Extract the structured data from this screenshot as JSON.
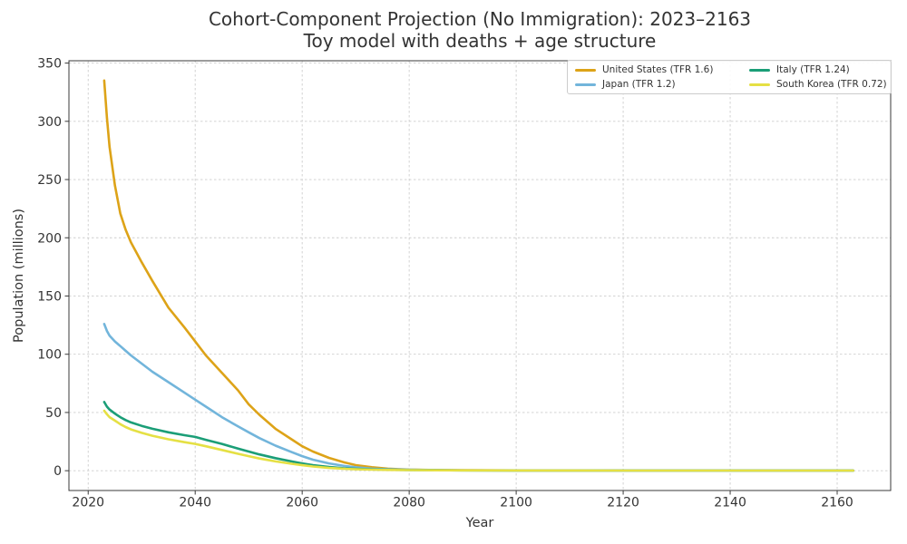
{
  "chart_data": {
    "type": "line",
    "title": "Cohort-Component Projection (No Immigration): 2023–2163",
    "subtitle": "Toy model with deaths + age structure",
    "xlabel": "Year",
    "ylabel": "Population (millions)",
    "axes": {
      "xlim": [
        2016.4,
        2170
      ],
      "ylim": [
        -17,
        352
      ],
      "xticks": [
        2020,
        2040,
        2060,
        2080,
        2100,
        2120,
        2140,
        2160
      ],
      "yticks": [
        0,
        50,
        100,
        150,
        200,
        250,
        300,
        350
      ],
      "grid": true,
      "grid_color": "#cdcdcd",
      "spine_color": "#3a3a3a",
      "tick_label_color": "#2b2b2b"
    },
    "legend": {
      "position": "upper right",
      "columns": 2
    },
    "series": [
      {
        "name": "United States (TFR 1.6)",
        "color": "#DDA318",
        "points": [
          [
            2023,
            335
          ],
          [
            2023.5,
            303
          ],
          [
            2024,
            278
          ],
          [
            2025,
            245
          ],
          [
            2026,
            221
          ],
          [
            2027,
            207
          ],
          [
            2028,
            196
          ],
          [
            2030,
            179
          ],
          [
            2032,
            163
          ],
          [
            2035,
            140
          ],
          [
            2038,
            123
          ],
          [
            2040,
            111
          ],
          [
            2042,
            99
          ],
          [
            2045,
            84
          ],
          [
            2048,
            69
          ],
          [
            2050,
            57
          ],
          [
            2052,
            48
          ],
          [
            2055,
            36
          ],
          [
            2058,
            27
          ],
          [
            2060,
            21
          ],
          [
            2062,
            16.5
          ],
          [
            2065,
            11
          ],
          [
            2068,
            7
          ],
          [
            2070,
            4.8
          ],
          [
            2073,
            3
          ],
          [
            2076,
            1.8
          ],
          [
            2080,
            1.0
          ],
          [
            2085,
            0.6
          ],
          [
            2090,
            0.4
          ],
          [
            2100,
            0.25
          ],
          [
            2120,
            0.15
          ],
          [
            2140,
            0.1
          ],
          [
            2163,
            0.1
          ]
        ]
      },
      {
        "name": "Japan (TFR 1.2)",
        "color": "#72B5DB",
        "points": [
          [
            2023,
            126
          ],
          [
            2023.5,
            120
          ],
          [
            2024,
            116
          ],
          [
            2025,
            111
          ],
          [
            2026,
            107
          ],
          [
            2027,
            103
          ],
          [
            2028,
            99
          ],
          [
            2030,
            92
          ],
          [
            2032,
            85
          ],
          [
            2035,
            76
          ],
          [
            2038,
            67
          ],
          [
            2040,
            61
          ],
          [
            2042,
            55
          ],
          [
            2045,
            46
          ],
          [
            2048,
            38
          ],
          [
            2050,
            33
          ],
          [
            2052,
            28
          ],
          [
            2055,
            21.5
          ],
          [
            2058,
            16
          ],
          [
            2060,
            12.5
          ],
          [
            2062,
            9.5
          ],
          [
            2065,
            6.3
          ],
          [
            2068,
            4
          ],
          [
            2070,
            2.9
          ],
          [
            2073,
            1.8
          ],
          [
            2076,
            1.2
          ],
          [
            2080,
            0.8
          ],
          [
            2085,
            0.5
          ],
          [
            2090,
            0.35
          ],
          [
            2100,
            0.2
          ],
          [
            2120,
            0.12
          ],
          [
            2140,
            0.1
          ],
          [
            2163,
            0.1
          ]
        ]
      },
      {
        "name": "Italy (TFR 1.24)",
        "color": "#1B9E77",
        "points": [
          [
            2023,
            59
          ],
          [
            2023.5,
            55
          ],
          [
            2024,
            52.5
          ],
          [
            2025,
            49
          ],
          [
            2026,
            46
          ],
          [
            2027,
            43.5
          ],
          [
            2028,
            41.5
          ],
          [
            2030,
            38.5
          ],
          [
            2032,
            36
          ],
          [
            2035,
            33
          ],
          [
            2038,
            30.5
          ],
          [
            2040,
            29
          ],
          [
            2042,
            26.5
          ],
          [
            2045,
            23
          ],
          [
            2048,
            19
          ],
          [
            2050,
            16.5
          ],
          [
            2052,
            14
          ],
          [
            2055,
            10.8
          ],
          [
            2058,
            8
          ],
          [
            2060,
            6.3
          ],
          [
            2062,
            4.8
          ],
          [
            2065,
            3.2
          ],
          [
            2068,
            2.1
          ],
          [
            2070,
            1.6
          ],
          [
            2073,
            1.1
          ],
          [
            2076,
            0.8
          ],
          [
            2080,
            0.55
          ],
          [
            2085,
            0.4
          ],
          [
            2090,
            0.3
          ],
          [
            2100,
            0.2
          ],
          [
            2120,
            0.12
          ],
          [
            2140,
            0.1
          ],
          [
            2163,
            0.1
          ]
        ]
      },
      {
        "name": "South Korea (TFR 0.72)",
        "color": "#E5E044",
        "points": [
          [
            2023,
            51.5
          ],
          [
            2023.5,
            48.5
          ],
          [
            2024,
            46
          ],
          [
            2025,
            43
          ],
          [
            2026,
            40
          ],
          [
            2027,
            37.5
          ],
          [
            2028,
            35.5
          ],
          [
            2030,
            32.5
          ],
          [
            2032,
            30
          ],
          [
            2035,
            27
          ],
          [
            2038,
            24.5
          ],
          [
            2040,
            23
          ],
          [
            2042,
            21
          ],
          [
            2045,
            17.8
          ],
          [
            2048,
            14.5
          ],
          [
            2050,
            12.5
          ],
          [
            2052,
            10.5
          ],
          [
            2055,
            8
          ],
          [
            2058,
            6
          ],
          [
            2060,
            4.7
          ],
          [
            2062,
            3.6
          ],
          [
            2065,
            2.4
          ],
          [
            2068,
            1.6
          ],
          [
            2070,
            1.2
          ],
          [
            2073,
            0.9
          ],
          [
            2076,
            0.65
          ],
          [
            2080,
            0.5
          ],
          [
            2085,
            0.35
          ],
          [
            2090,
            0.28
          ],
          [
            2100,
            0.2
          ],
          [
            2120,
            0.12
          ],
          [
            2140,
            0.1
          ],
          [
            2163,
            0.1
          ]
        ]
      }
    ]
  }
}
